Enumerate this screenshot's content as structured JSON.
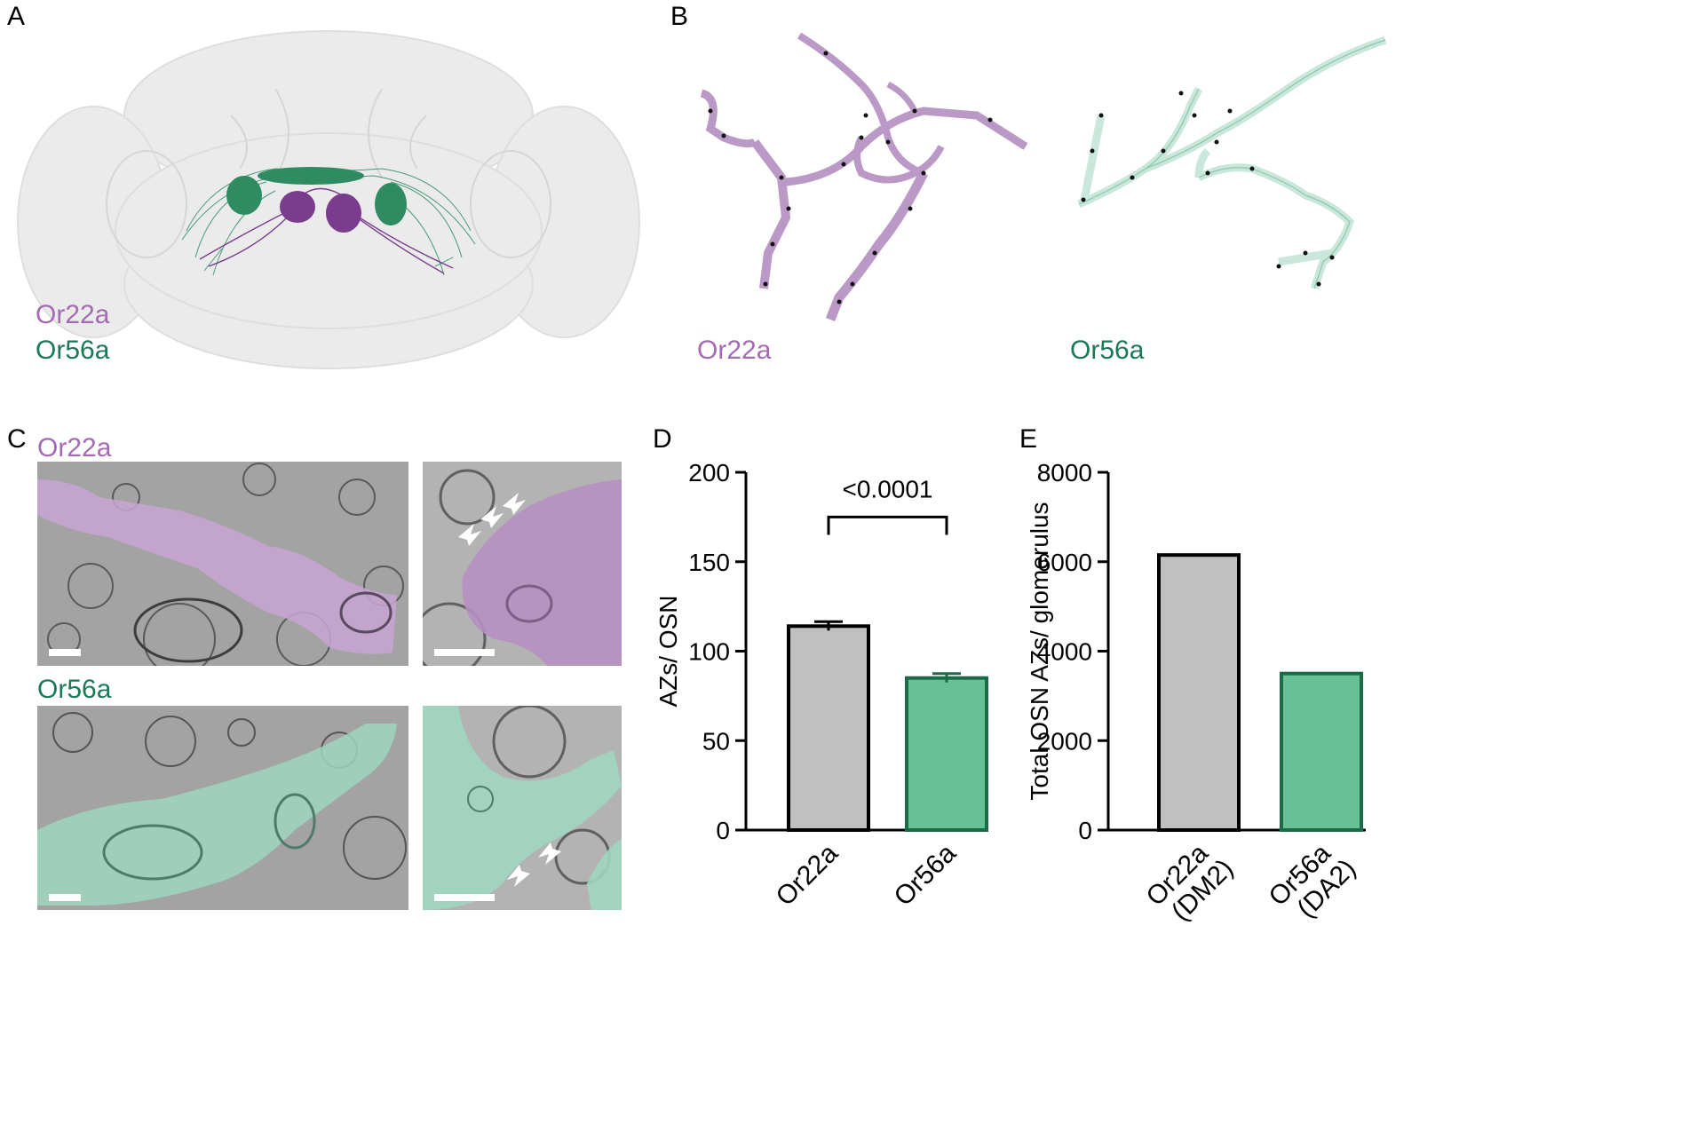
{
  "panels": {
    "a": {
      "letter": "A",
      "legend": [
        {
          "text": "Or22a",
          "color": "#a56ab4"
        },
        {
          "text": "Or56a",
          "color": "#1b7a55"
        }
      ]
    },
    "b": {
      "letter": "B",
      "labels": [
        {
          "text": "Or22a",
          "color": "#a56ab4"
        },
        {
          "text": "Or56a",
          "color": "#1b7a55"
        }
      ]
    },
    "c": {
      "letter": "C",
      "rows": [
        {
          "text": "Or22a",
          "color": "#a56ab4"
        },
        {
          "text": "Or56a",
          "color": "#1b7a55"
        }
      ]
    },
    "d": {
      "letter": "D"
    },
    "e": {
      "letter": "E"
    }
  },
  "chart_data": [
    {
      "type": "bar",
      "panel": "D",
      "categories": [
        "Or22a",
        "Or56a"
      ],
      "values": [
        114,
        85
      ],
      "errors": [
        2.5,
        2.5
      ],
      "colors": [
        "#c0c0c0",
        "#67c196"
      ],
      "edge_colors": [
        "#000000",
        "#1b6b47"
      ],
      "ylabel": "AZs/ OSN",
      "ylim": [
        0,
        200
      ],
      "yticks": [
        "0",
        "50",
        "100",
        "150",
        "200"
      ],
      "annotation": "<0.0001"
    },
    {
      "type": "bar",
      "panel": "E",
      "categories": [
        "Or22a\n(DM2)",
        "Or56a\n(DA2)"
      ],
      "category_lines": [
        [
          "Or22a",
          "(DM2)"
        ],
        [
          "Or56a",
          "(DA2)"
        ]
      ],
      "values": [
        6150,
        3500
      ],
      "colors": [
        "#c0c0c0",
        "#67c196"
      ],
      "edge_colors": [
        "#000000",
        "#1b6b47"
      ],
      "ylabel": "Total OSN AZs/ glomerulus",
      "ylim": [
        0,
        8000
      ],
      "yticks": [
        "0",
        "2000",
        "4000",
        "6000",
        "8000"
      ]
    }
  ]
}
